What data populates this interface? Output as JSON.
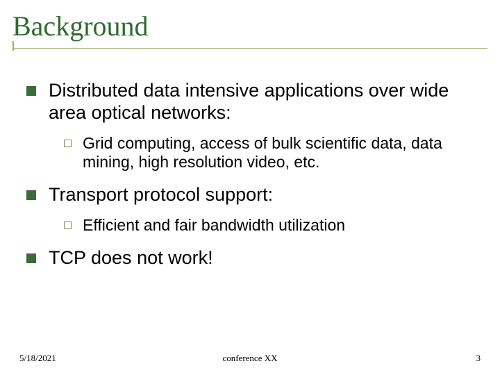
{
  "colors": {
    "title": "#2f6b2f",
    "rule": "#9aad6c",
    "body_text": "#000000",
    "lvl1_bullet": "#3a6b3a",
    "lvl2_bullet_border": "#7a8a5a",
    "footer_text": "#000000",
    "background": "#ffffff"
  },
  "typography": {
    "title_family": "Times New Roman",
    "title_size_pt": 40,
    "body_family": "Arial",
    "lvl1_size_pt": 27,
    "lvl2_size_pt": 23,
    "footer_family": "Times New Roman",
    "footer_size_pt": 13
  },
  "title": "Background",
  "bullets": [
    {
      "text": "Distributed data intensive applications over wide area optical networks:",
      "children": [
        {
          "text": "Grid computing, access of bulk scientific data, data mining, high resolution video, etc."
        }
      ]
    },
    {
      "text": "Transport protocol support:",
      "children": [
        {
          "text": "Efficient and fair bandwidth utilization"
        }
      ]
    },
    {
      "text": "TCP does not work!",
      "children": []
    }
  ],
  "footer": {
    "date": "5/18/2021",
    "center": "conference XX",
    "page": "3"
  }
}
